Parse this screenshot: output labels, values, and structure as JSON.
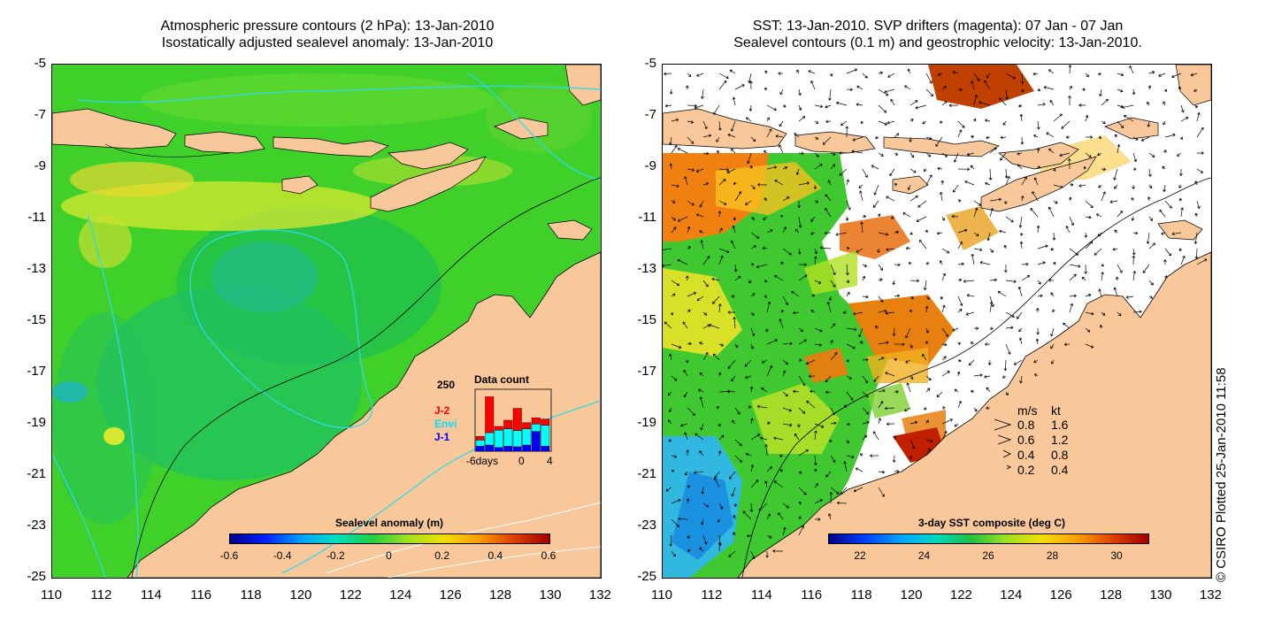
{
  "left_panel": {
    "title_line1": "Atmospheric pressure contours (2 hPa): 13-Jan-2010",
    "title_line2": "Isostatically adjusted sealevel anomaly: 13-Jan-2010",
    "colorbar": {
      "title": "Sealevel anomaly (m)",
      "ticks": [
        "-0.6",
        "-0.4",
        "-0.2",
        "0",
        "0.2",
        "0.4",
        "0.6"
      ]
    },
    "data_count": {
      "title": "Data count",
      "y_max_label": "250",
      "x_labels": [
        "-6days",
        "0",
        "4"
      ],
      "legend": [
        {
          "name": "J-2",
          "color": "#ff0000"
        },
        {
          "name": "Envi",
          "color": "#00ffff"
        },
        {
          "name": "J-1",
          "color": "#0000ff"
        }
      ],
      "bars": [
        {
          "j1": 20,
          "envi": 25,
          "j2": 15
        },
        {
          "j1": 25,
          "envi": 50,
          "j2": 145
        },
        {
          "j1": 15,
          "envi": 70,
          "j2": 15
        },
        {
          "j1": 20,
          "envi": 70,
          "j2": 35
        },
        {
          "j1": 18,
          "envi": 65,
          "j2": 90
        },
        {
          "j1": 25,
          "envi": 65,
          "j2": 25
        },
        {
          "j1": 80,
          "envi": 30,
          "j2": 25
        },
        {
          "j1": 20,
          "envi": 85,
          "j2": 25
        }
      ]
    }
  },
  "right_panel": {
    "title_line1": "SST: 13-Jan-2010. SVP drifters (magenta): 07 Jan - 07 Jan",
    "title_line2": "Sealevel contours (0.1 m) and geostrophic velocity: 13-Jan-2010.",
    "colorbar": {
      "title": "3-day SST composite (deg C)",
      "ticks": [
        "22",
        "24",
        "26",
        "28",
        "30"
      ]
    },
    "speed_legend": {
      "header_ms": "m/s",
      "header_kt": "kt",
      "rows": [
        {
          "ms": "0.8",
          "kt": "1.6"
        },
        {
          "ms": "0.6",
          "kt": "1.2"
        },
        {
          "ms": "0.4",
          "kt": "0.8"
        },
        {
          "ms": "0.2",
          "kt": "0.4"
        }
      ]
    }
  },
  "axes": {
    "y_labels": [
      "-5",
      "-7",
      "-9",
      "-11",
      "-13",
      "-15",
      "-17",
      "-19",
      "-21",
      "-23",
      "-25"
    ],
    "x_labels": [
      "110",
      "112",
      "114",
      "116",
      "118",
      "120",
      "122",
      "124",
      "126",
      "128",
      "130",
      "132"
    ]
  },
  "credit": "© CSIRO Plotted 25-Jan-2010 11:58",
  "colors": {
    "land": "#f8c89a",
    "ocean_green": "#3fd12a",
    "ocean_yellow": "#d8e830",
    "ocean_cyan": "#20c8a0",
    "contour_cyan": "#30d8e8"
  }
}
